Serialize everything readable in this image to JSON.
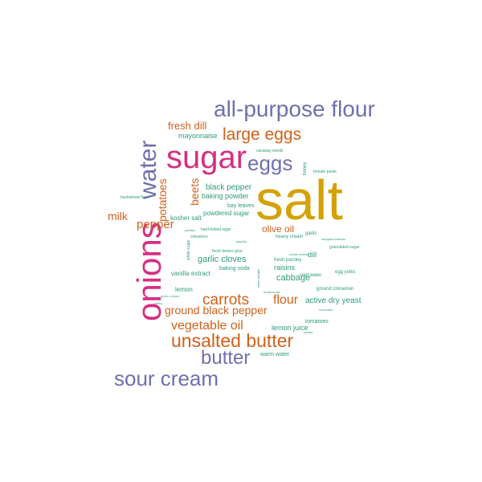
{
  "colors": {
    "gold": "#d4a106",
    "magenta": "#d62f83",
    "purple": "#6f6faf",
    "orange": "#d0611b",
    "teal": "#2e9b78"
  },
  "words": {
    "salt": "salt",
    "onions": "onions",
    "sugar": "sugar",
    "all_purpose_flour": "all-purpose flour",
    "water": "water",
    "eggs": "eggs",
    "large_eggs": "large eggs",
    "unsalted_butter": "unsalted butter",
    "sour_cream": "sour cream",
    "butter": "butter",
    "carrots": "carrots",
    "vegetable_oil": "vegetable oil",
    "ground_black_pepper": "ground black pepper",
    "flour": "flour",
    "pepper": "pepper",
    "milk": "milk",
    "potatoes": "potatoes",
    "beets": "beets",
    "fresh_dill": "fresh dill",
    "mayonnaise": "mayonnaise",
    "olive_oil": "olive oil",
    "garlic_cloves": "garlic cloves",
    "black_pepper": "black pepper",
    "baking_powder": "baking powder",
    "powdered_sugar": "powdered sugar",
    "kosher_salt": "kosher salt",
    "cabbage": "cabbage",
    "active_dry_yeast": "active dry yeast",
    "lemon_juice": "lemon juice",
    "vanilla_extract": "vanilla extract",
    "lemon": "lemon",
    "dill": "dill",
    "raisins": "raisins",
    "baking_soda": "baking soda",
    "tomatoes": "tomatoes",
    "warm_water": "warm water",
    "bay_leaves": "bay leaves",
    "garlic": "garlic",
    "heavy_cream": "heavy cream",
    "fresh_parsley": "fresh parsley",
    "cold_water": "cold water",
    "ground_cinnamon": "ground cinnamon",
    "egg_yolks": "egg yolks",
    "granulated_sugar": "granulated sugar",
    "honey": "honey",
    "caraway_seeds": "caraway seeds",
    "tomato_paste": "tomato paste",
    "cinnamon": "cinnamon",
    "parsley": "parsley",
    "buckwheat_flour": "buckwheat flour",
    "hard_boiled_eggs": "hard-boiled eggs",
    "fresh_lemon_juice": "fresh lemon juice",
    "white_sugar": "white sugar",
    "green_onions": "green onions",
    "celery": "celery",
    "mushrooms": "mushrooms",
    "cream_cheese": "cream cheese",
    "white_vinegar": "white vinegar",
    "vanilla": "vanilla",
    "chopped_walnuts": "chopped walnuts",
    "paprika": "paprika",
    "cucumber": "cucumber"
  }
}
